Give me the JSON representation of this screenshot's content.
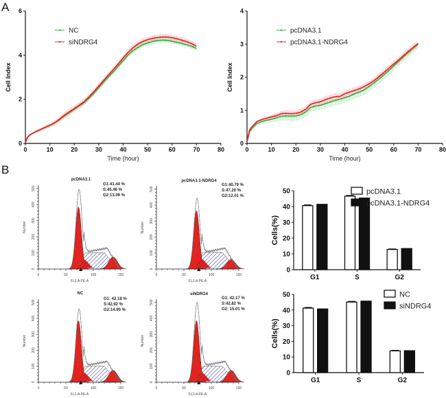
{
  "panels": {
    "A": "A",
    "B": "B"
  },
  "colors": {
    "green": "#3cb043",
    "red": "#e8262a",
    "flow_red": "#e0241f",
    "hatch": "#3a3a9a",
    "bar_black": "#111111"
  },
  "chart_data": [
    {
      "id": "rtca-si",
      "type": "line",
      "title": "",
      "xlabel": "Time (hour)",
      "ylabel": "Cell Index",
      "xlim": [
        0,
        80
      ],
      "ylim": [
        0,
        6
      ],
      "xticks": [
        "0",
        "10",
        "20",
        "30",
        "40",
        "50",
        "60",
        "70",
        "80"
      ],
      "yticks": [
        "0",
        "2",
        "4",
        "6"
      ],
      "legend_position": "top-left",
      "x": [
        0,
        1,
        2,
        4,
        6,
        8,
        10,
        12,
        14,
        16,
        18,
        20,
        22,
        24,
        26,
        28,
        30,
        32,
        34,
        36,
        38,
        40,
        42,
        44,
        46,
        48,
        50,
        52,
        54,
        56,
        58,
        60,
        62,
        64,
        66,
        68,
        70
      ],
      "series": [
        {
          "name": "NC",
          "color": "#3cb043",
          "values": [
            0.05,
            0.3,
            0.4,
            0.52,
            0.62,
            0.72,
            0.82,
            0.93,
            1.08,
            1.25,
            1.4,
            1.55,
            1.7,
            1.85,
            2.05,
            2.28,
            2.52,
            2.78,
            3.02,
            3.25,
            3.5,
            3.75,
            4.0,
            4.2,
            4.35,
            4.47,
            4.55,
            4.62,
            4.66,
            4.68,
            4.67,
            4.63,
            4.58,
            4.53,
            4.47,
            4.4,
            4.3
          ],
          "err": 0.12
        },
        {
          "name": "siNDRG4",
          "color": "#e8262a",
          "values": [
            0.05,
            0.3,
            0.4,
            0.52,
            0.62,
            0.72,
            0.82,
            0.94,
            1.1,
            1.28,
            1.43,
            1.58,
            1.73,
            1.88,
            2.1,
            2.34,
            2.6,
            2.85,
            3.1,
            3.35,
            3.6,
            3.87,
            4.12,
            4.33,
            4.5,
            4.62,
            4.7,
            4.76,
            4.8,
            4.82,
            4.82,
            4.79,
            4.74,
            4.68,
            4.61,
            4.52,
            4.4
          ],
          "err": 0.14
        }
      ]
    },
    {
      "id": "rtca-oe",
      "type": "line",
      "title": "",
      "xlabel": "Time (hour)",
      "ylabel": "Cell Index",
      "xlim": [
        0,
        80
      ],
      "ylim": [
        0,
        4
      ],
      "xticks": [
        "0",
        "10",
        "20",
        "30",
        "40",
        "50",
        "60",
        "70",
        "80"
      ],
      "yticks": [
        "0",
        "1",
        "2",
        "3",
        "4"
      ],
      "legend_position": "top-left",
      "x": [
        0,
        1,
        2,
        4,
        6,
        8,
        10,
        12,
        14,
        16,
        18,
        20,
        22,
        24,
        26,
        28,
        30,
        32,
        34,
        36,
        38,
        40,
        42,
        44,
        46,
        48,
        50,
        52,
        54,
        56,
        58,
        60,
        62,
        64,
        66,
        68,
        70
      ],
      "series": [
        {
          "name": "pcDNA3.1",
          "color": "#3cb043",
          "values": [
            0.05,
            0.35,
            0.45,
            0.6,
            0.66,
            0.7,
            0.73,
            0.77,
            0.82,
            0.83,
            0.82,
            0.83,
            0.87,
            0.95,
            1.08,
            1.13,
            1.15,
            1.2,
            1.25,
            1.3,
            1.33,
            1.38,
            1.43,
            1.5,
            1.55,
            1.62,
            1.72,
            1.83,
            1.95,
            2.07,
            2.2,
            2.34,
            2.48,
            2.62,
            2.75,
            2.88,
            3.0
          ],
          "err_low": 0.15,
          "err_high": 0.05
        },
        {
          "name": "pcDNA3.1-NDRG4",
          "color": "#e8262a",
          "values": [
            0.05,
            0.4,
            0.5,
            0.66,
            0.72,
            0.76,
            0.8,
            0.84,
            0.9,
            0.91,
            0.9,
            0.91,
            0.95,
            1.03,
            1.18,
            1.23,
            1.26,
            1.32,
            1.37,
            1.41,
            1.42,
            1.5,
            1.55,
            1.6,
            1.65,
            1.72,
            1.8,
            1.9,
            2.02,
            2.14,
            2.27,
            2.4,
            2.52,
            2.65,
            2.78,
            2.9,
            3.02
          ],
          "err": 0.1
        }
      ]
    },
    {
      "id": "bar-oe",
      "type": "bar",
      "title": "",
      "xlabel": "",
      "ylabel": "Cells(%)",
      "ylim": [
        0,
        50
      ],
      "yticks": [
        "0",
        "10",
        "20",
        "30",
        "40",
        "50"
      ],
      "categories": [
        "G1",
        "S",
        "G2"
      ],
      "legend_position": "top-right",
      "series": [
        {
          "name": "pcDNA3.1",
          "fill": "white",
          "values": [
            40.6,
            46.6,
            12.8
          ],
          "err": [
            0.4,
            0.4,
            0.3
          ]
        },
        {
          "name": "pcDNA3.1-NDRG4",
          "fill": "black",
          "values": [
            41.4,
            45.4,
            13.4
          ],
          "err": [
            0,
            0,
            0
          ]
        }
      ]
    },
    {
      "id": "bar-si",
      "type": "bar",
      "title": "",
      "xlabel": "",
      "ylabel": "Cells(%)",
      "ylim": [
        0,
        50
      ],
      "yticks": [
        "0",
        "10",
        "20",
        "30",
        "40",
        "50"
      ],
      "categories": [
        "G1",
        "S",
        "G2"
      ],
      "legend_position": "top-right",
      "series": [
        {
          "name": "NC",
          "fill": "white",
          "values": [
            41.2,
            45.1,
            13.9
          ],
          "err": [
            0.4,
            0.4,
            0.3
          ]
        },
        {
          "name": "siNDRG4",
          "fill": "black",
          "values": [
            40.7,
            45.7,
            14.0
          ],
          "err": [
            0,
            0,
            0
          ]
        }
      ]
    }
  ],
  "flow": [
    {
      "title": "pcDNA3.1",
      "g1": "G1:41.44 %",
      "s": "S:45.46 %",
      "g2": "G2:13.09 %",
      "g1_peak": 385,
      "g2_peak": 75,
      "s_level": 100,
      "envelope_g1": 495,
      "envelope_s": 130
    },
    {
      "title": "pcDNA3.1-NDRG4",
      "g1": "G1:40.79 %",
      "s": "S:47.20 %",
      "g2": "G2:12.01 %",
      "g1_peak": 365,
      "g2_peak": 60,
      "s_level": 105,
      "envelope_g1": 445,
      "envelope_s": 130
    },
    {
      "title": "NC",
      "g1": "G1: 42.18 %",
      "s": "S:42.92 %",
      "g2": "G2:14.90 %",
      "g1_peak": 385,
      "g2_peak": 75,
      "s_level": 100,
      "envelope_g1": 460,
      "envelope_s": 130
    },
    {
      "title": "siNDRG4",
      "g1": "G1: 42.17 %",
      "s": "S:42.82 %",
      "g2": "G2: 15.01 %",
      "g1_peak": 385,
      "g2_peak": 75,
      "s_level": 100,
      "envelope_g1": 500,
      "envelope_s": 130
    }
  ],
  "flow_axes": {
    "ylabel": "Number",
    "xlabel": "FL2-A PE-A",
    "xticks": [
      "0",
      "50",
      "100",
      "150"
    ],
    "yticks": [
      "0",
      "100",
      "200",
      "300",
      "400",
      "500"
    ],
    "xlim": [
      0,
      150
    ],
    "ylim": [
      0,
      520
    ]
  }
}
